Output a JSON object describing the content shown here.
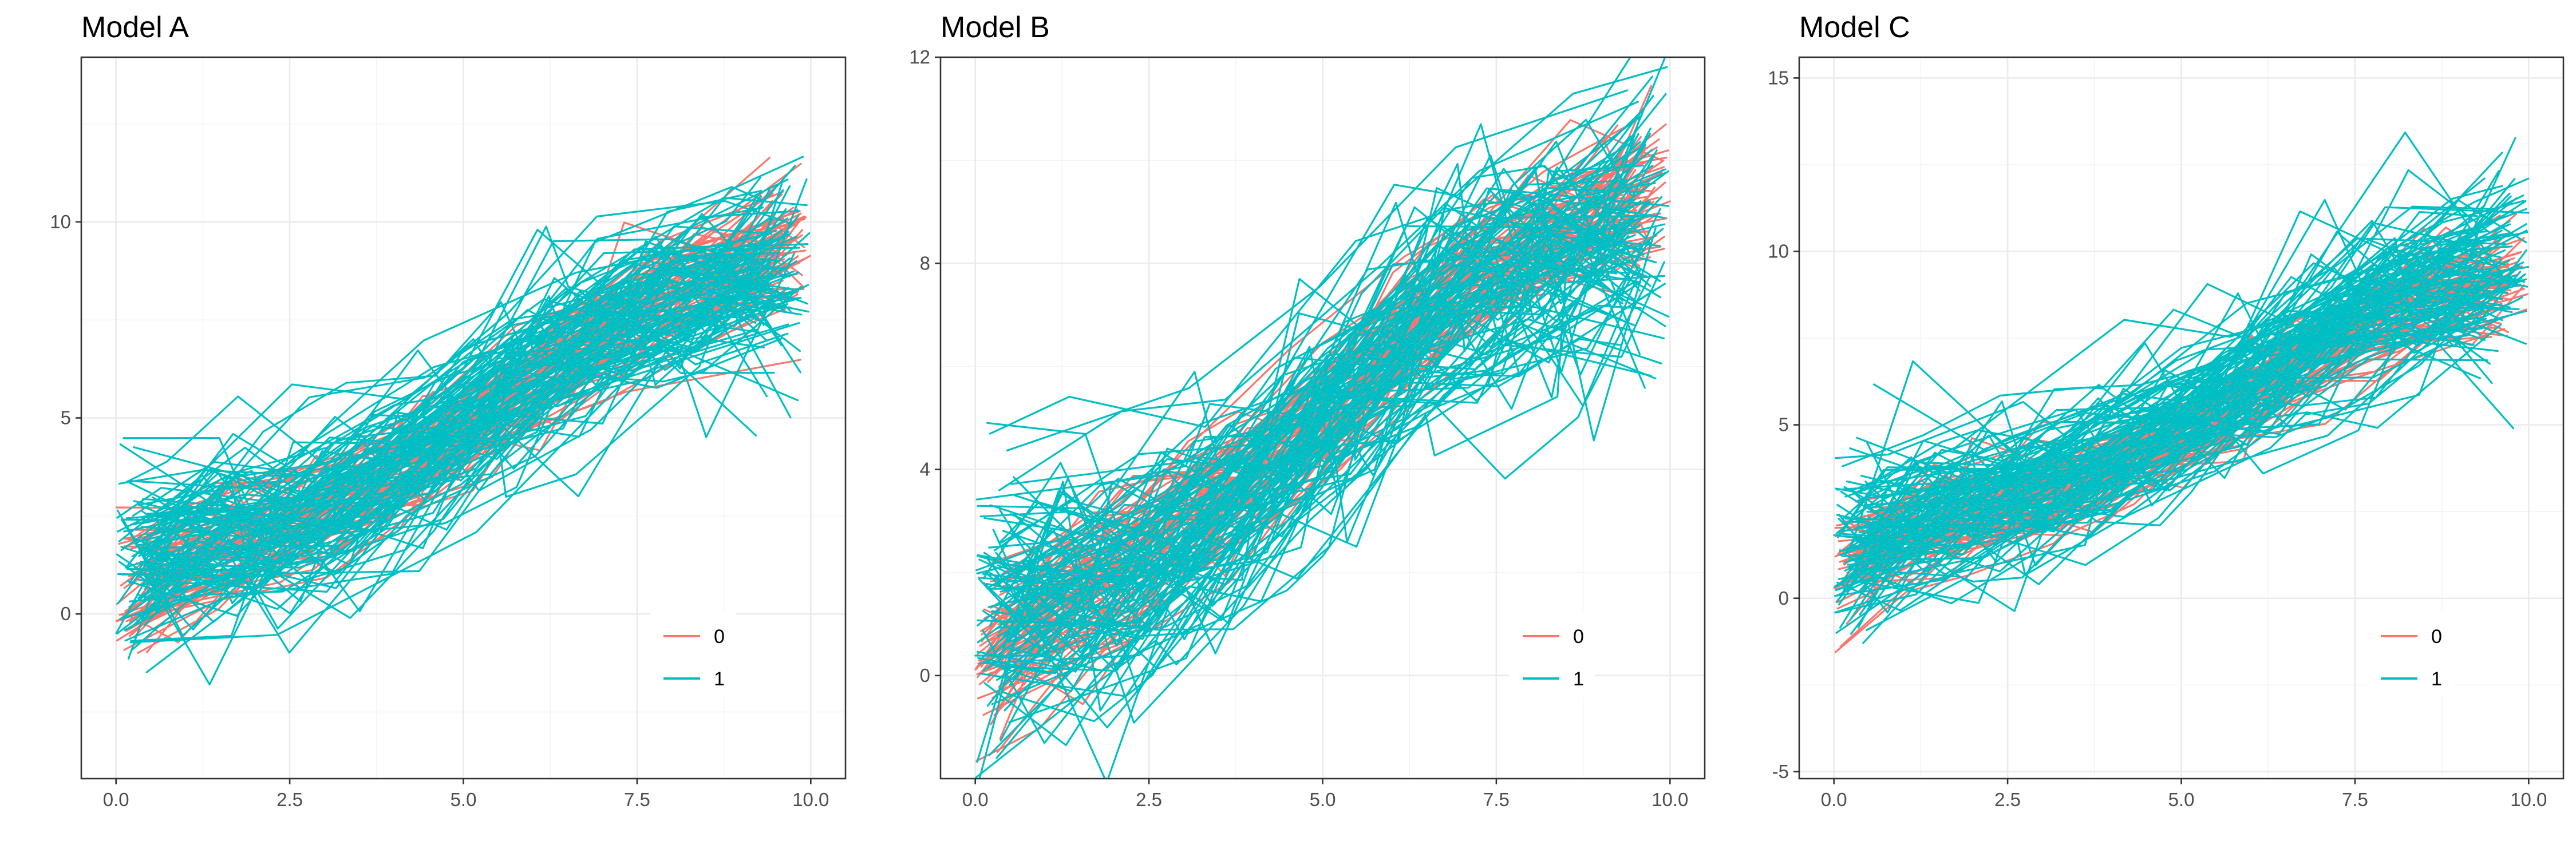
{
  "chart_data": [
    {
      "type": "line",
      "title": "Model A",
      "xlabel": "",
      "ylabel": "",
      "xlim": [
        -0.5,
        10.5
      ],
      "ylim": [
        -4.2,
        14.2
      ],
      "xticks": [
        "0.0",
        "2.5",
        "5.0",
        "7.5",
        "10.0"
      ],
      "yticks": [
        "0",
        "5",
        "10"
      ],
      "grid": true,
      "legend_position": "bottom-right",
      "series": [
        {
          "name": "0",
          "color": "#F8766D",
          "description": "many noisy trajectories, one per unit, rising from about 1 at x=0 to about 9.5 at x=10",
          "mean_curve": {
            "x": [
              0,
              1,
              2,
              2.5,
              3,
              4,
              5,
              6,
              7,
              7.5,
              8,
              9,
              10
            ],
            "y": [
              0.5,
              1.6,
              2.3,
              2.3,
              2.6,
              3.5,
              4.6,
              6,
              7.2,
              7.8,
              8.2,
              9,
              9.6
            ]
          }
        },
        {
          "name": "1",
          "color": "#00BFC4",
          "description": "many noisy trajectories with wider spread, rising from about 1.5 at x=0 to about 9 at x=10",
          "mean_curve": {
            "x": [
              0,
              1,
              2,
              2.5,
              3,
              4,
              5,
              6,
              7,
              7.5,
              8,
              9,
              10
            ],
            "y": [
              1.2,
              1.9,
              2.1,
              2.0,
              2.6,
              3.8,
              5.0,
              6.3,
              7.4,
              7.9,
              8.2,
              8.6,
              8.9
            ]
          }
        }
      ]
    },
    {
      "type": "line",
      "title": "Model B",
      "xlabel": "",
      "ylabel": "",
      "xlim": [
        -0.5,
        10.5
      ],
      "ylim": [
        -2.0,
        12.0
      ],
      "xticks": [
        "0.0",
        "2.5",
        "5.0",
        "7.5",
        "10.0"
      ],
      "yticks": [
        "0",
        "4",
        "8",
        "12"
      ],
      "grid": true,
      "legend_position": "bottom-right",
      "series": [
        {
          "name": "0",
          "color": "#F8766D",
          "description": "many noisy trajectories rising from about 0.3 at x=0 to about 9.5 at x=10",
          "mean_curve": {
            "x": [
              0,
              1,
              2,
              3,
              4,
              5,
              6,
              7,
              8,
              9,
              10
            ],
            "y": [
              0.3,
              1.3,
              2.1,
              2.9,
              3.8,
              5.0,
              6.4,
              7.6,
              8.4,
              9.0,
              9.5
            ]
          }
        },
        {
          "name": "1",
          "color": "#00BFC4",
          "description": "many noisy trajectories rising from about 1.3 at x=0 to about 8.8 at x=10",
          "mean_curve": {
            "x": [
              0,
              1,
              2,
              3,
              4,
              5,
              6,
              7,
              8,
              9,
              10
            ],
            "y": [
              1.3,
              1.5,
              1.9,
              2.5,
              3.5,
              4.9,
              6.3,
              7.5,
              8.1,
              8.5,
              8.8
            ]
          }
        }
      ]
    },
    {
      "type": "line",
      "title": "Model C",
      "xlabel": "",
      "ylabel": "",
      "xlim": [
        -0.5,
        10.5
      ],
      "ylim": [
        -5.2,
        15.6
      ],
      "xticks": [
        "0.0",
        "2.5",
        "5.0",
        "7.5",
        "10.0"
      ],
      "yticks": [
        "-5",
        "0",
        "5",
        "10",
        "15"
      ],
      "grid": true,
      "legend_position": "bottom-right",
      "series": [
        {
          "name": "0",
          "color": "#F8766D",
          "description": "many noisy trajectories rising from about 0.8 at x=0 to about 9.3 at x=10",
          "mean_curve": {
            "x": [
              0,
              1,
              2,
              2.5,
              3,
              4,
              5,
              6,
              7,
              7.5,
              8,
              9,
              10
            ],
            "y": [
              0.8,
              1.8,
              2.4,
              2.6,
              2.9,
              3.6,
              4.6,
              5.8,
              7.1,
              7.8,
              8.3,
              8.9,
              9.3
            ]
          }
        },
        {
          "name": "1",
          "color": "#00BFC4",
          "description": "many noisy trajectories with wider spread, rising from about 1.2 at x=0 to about 9.7 at x=10",
          "mean_curve": {
            "x": [
              0,
              1,
              2,
              2.5,
              3,
              4,
              5,
              6,
              7,
              7.5,
              8,
              9,
              10
            ],
            "y": [
              1.2,
              2.2,
              2.8,
              2.9,
              3.0,
              3.9,
              5.0,
              6.3,
              7.5,
              8.1,
              8.6,
              9.2,
              9.7
            ]
          }
        }
      ]
    }
  ]
}
